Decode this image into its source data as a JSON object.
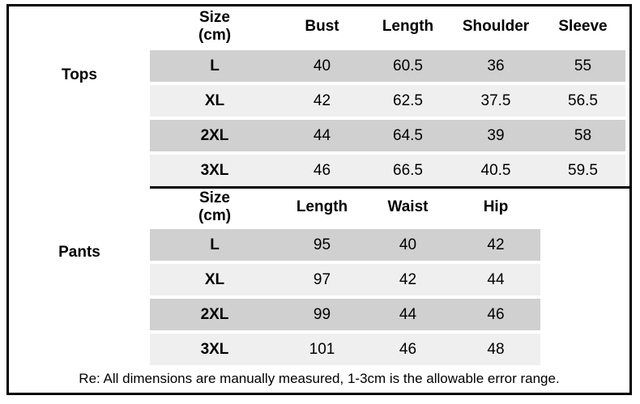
{
  "chart_data": [
    {
      "type": "table",
      "title": "Tops",
      "columns": [
        "Size (cm)",
        "Bust",
        "Length",
        "Shoulder",
        "Sleeve"
      ],
      "rows": [
        [
          "L",
          40,
          60.5,
          36,
          55
        ],
        [
          "XL",
          42,
          62.5,
          37.5,
          56.5
        ],
        [
          "2XL",
          44,
          64.5,
          39,
          58
        ],
        [
          "3XL",
          46,
          66.5,
          40.5,
          59.5
        ]
      ]
    },
    {
      "type": "table",
      "title": "Pants",
      "columns": [
        "Size (cm)",
        "Length",
        "Waist",
        "Hip"
      ],
      "rows": [
        [
          "L",
          95,
          40,
          42
        ],
        [
          "XL",
          97,
          42,
          44
        ],
        [
          "2XL",
          99,
          44,
          46
        ],
        [
          "3XL",
          101,
          46,
          48
        ]
      ]
    }
  ],
  "tops": {
    "label": "Tops",
    "header": {
      "size_line1": "Size",
      "size_line2": "(cm)",
      "col1": "Bust",
      "col2": "Length",
      "col3": "Shoulder",
      "col4": "Sleeve"
    },
    "rows": [
      {
        "size": "L",
        "values": [
          "40",
          "60.5",
          "36",
          "55"
        ]
      },
      {
        "size": "XL",
        "values": [
          "42",
          "62.5",
          "37.5",
          "56.5"
        ]
      },
      {
        "size": "2XL",
        "values": [
          "44",
          "64.5",
          "39",
          "58"
        ]
      },
      {
        "size": "3XL",
        "values": [
          "46",
          "66.5",
          "40.5",
          "59.5"
        ]
      }
    ]
  },
  "pants": {
    "label": "Pants",
    "header": {
      "size_line1": "Size",
      "size_line2": "(cm)",
      "col1": "Length",
      "col2": "Waist",
      "col3": "Hip"
    },
    "rows": [
      {
        "size": "L",
        "values": [
          "95",
          "40",
          "42"
        ]
      },
      {
        "size": "XL",
        "values": [
          "97",
          "42",
          "44"
        ]
      },
      {
        "size": "2XL",
        "values": [
          "99",
          "44",
          "46"
        ]
      },
      {
        "size": "3XL",
        "values": [
          "101",
          "46",
          "48"
        ]
      }
    ]
  },
  "note": "Re: All dimensions are manually measured, 1-3cm is the allowable error range.",
  "colors": {
    "row_dark": "#d0d0d0",
    "row_light": "#efefef",
    "border": "#000000",
    "text": "#000000"
  }
}
